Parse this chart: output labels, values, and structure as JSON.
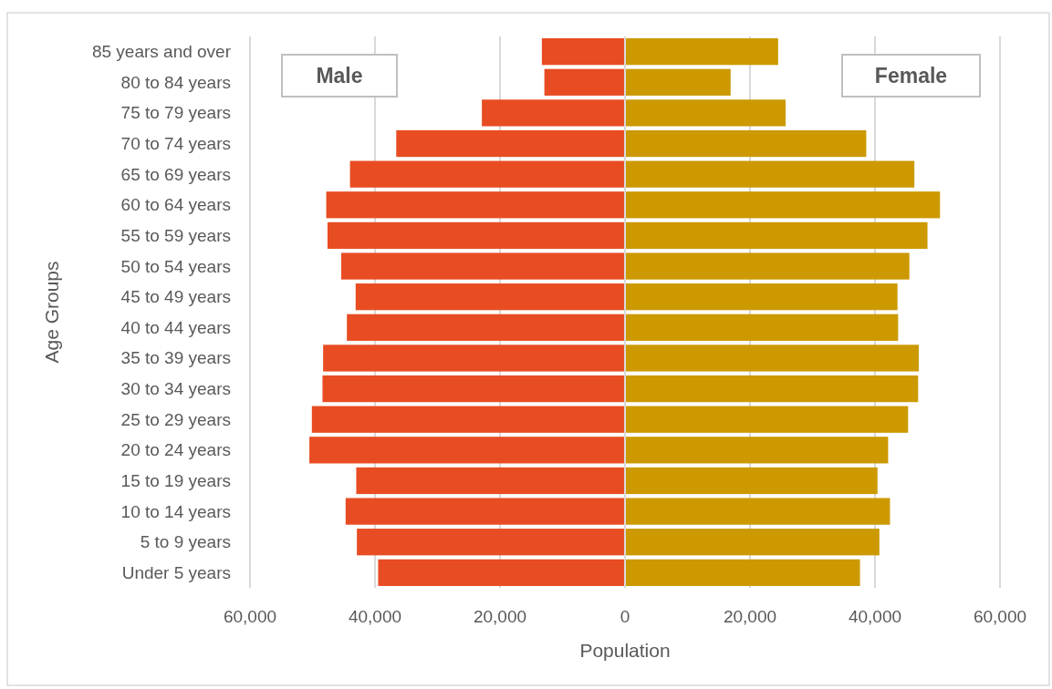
{
  "chart_data": {
    "type": "bar",
    "orientation": "horizontal",
    "stacked": true,
    "xlabel": "Population",
    "ylabel": "Age Groups",
    "categories": [
      "85 years and over",
      "80 to 84 years",
      "75 to 79 years",
      "70 to 74 years",
      "65 to 69 years",
      "60 to 64 years",
      "55 to 59 years",
      "50 to 54 years",
      "45 to 49 years",
      "40 to 44 years",
      "35 to 39 years",
      "30 to 34 years",
      "25 to 29 years",
      "20 to 24 years",
      "15 to 19 years",
      "10 to 14 years",
      "5 to 9 years",
      "Under 5 years"
    ],
    "series": [
      {
        "name": "Male",
        "color": "#e84c22",
        "values": [
          -13300,
          -12900,
          -22900,
          -36600,
          -44000,
          -47800,
          -47600,
          -45400,
          -43100,
          -44500,
          -48300,
          -48400,
          -50100,
          -50500,
          -43000,
          -44700,
          -42900,
          -39500
        ]
      },
      {
        "name": "Female",
        "color": "#cc9900",
        "values": [
          24500,
          16900,
          25700,
          38600,
          46300,
          50400,
          48400,
          45500,
          43600,
          43700,
          47000,
          46900,
          45300,
          42100,
          40400,
          42400,
          40700,
          37600
        ]
      }
    ],
    "xlim": [
      -60000,
      60000
    ],
    "xticks": [
      {
        "value": -60000,
        "label": "60,000"
      },
      {
        "value": -40000,
        "label": "40,000"
      },
      {
        "value": -20000,
        "label": "20,000"
      },
      0,
      {
        "value": 20000,
        "label": "20,000"
      },
      {
        "value": 40000,
        "label": "40,000"
      },
      {
        "value": 60000,
        "label": "60,000"
      }
    ],
    "grid": "x"
  }
}
